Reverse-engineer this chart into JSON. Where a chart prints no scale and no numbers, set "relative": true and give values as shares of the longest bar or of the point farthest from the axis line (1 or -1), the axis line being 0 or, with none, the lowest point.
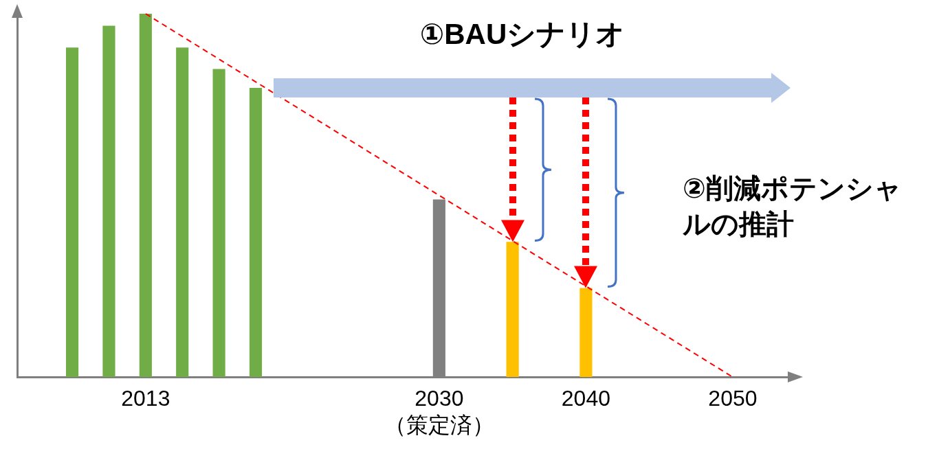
{
  "chart_data": {
    "type": "bar",
    "relative": true,
    "categories": [
      null,
      null,
      null,
      "2013",
      null,
      null,
      null,
      null,
      null,
      null,
      null,
      "2030\n（策定済）",
      null,
      null,
      null,
      "2040",
      null,
      null,
      null,
      "2050",
      null
    ],
    "series": [
      {
        "values": [
          null,
          0.907,
          0.967,
          1,
          0.907,
          0.848,
          0.796,
          null,
          null,
          null,
          null,
          0.489,
          null,
          0.372,
          null,
          0.245,
          null,
          null,
          null,
          null,
          null
        ],
        "colors": [
          null,
          "#70ad47",
          "#70ad47",
          "#70ad47",
          "#70ad47",
          "#70ad47",
          "#70ad47",
          null,
          null,
          null,
          null,
          "#808080",
          null,
          "#ffc000",
          null,
          "#ffc000",
          null,
          null,
          null,
          null,
          null
        ]
      },
      {
        "type": "line",
        "color": "#ff0000",
        "line_style": "dashed",
        "marker": "none",
        "values": [
          null,
          null,
          null,
          1,
          null,
          null,
          null,
          null,
          null,
          null,
          null,
          null,
          null,
          null,
          null,
          null,
          null,
          null,
          null,
          0,
          null
        ]
      }
    ],
    "annotations": [
      "①BAUシナリオ",
      "②削減ポテンシャルの推計"
    ],
    "grid": false,
    "legend": false
  }
}
